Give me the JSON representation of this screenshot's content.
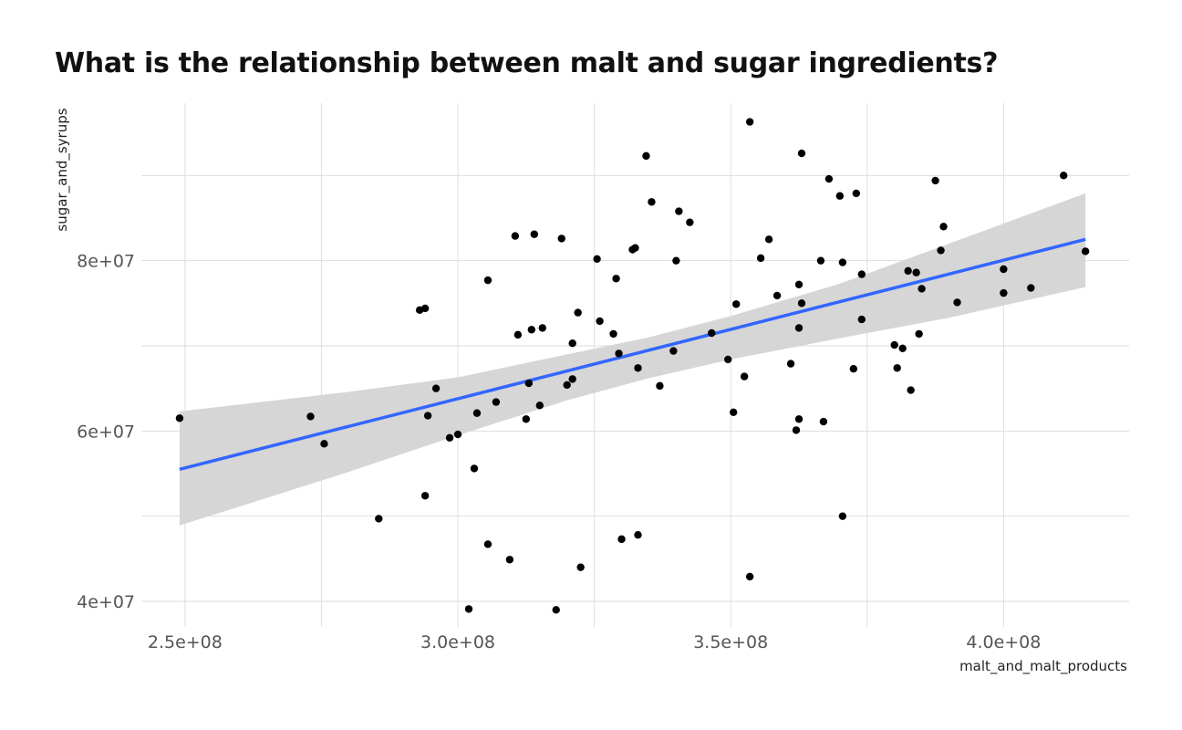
{
  "chart_data": {
    "type": "scatter",
    "title": "What is the relationship between malt and sugar ingredients?",
    "xlabel": "malt_and_malt_products",
    "ylabel": "sugar_and_syrups",
    "xlim": [
      242000000,
      423000000
    ],
    "ylim": [
      37000000,
      98500000
    ],
    "x_ticks": [
      250000000,
      300000000,
      350000000,
      400000000
    ],
    "x_tick_labels": [
      "2.5e+08",
      "3.0e+08",
      "3.5e+08",
      "4.0e+08"
    ],
    "y_ticks": [
      40000000,
      60000000,
      80000000
    ],
    "y_tick_labels": [
      "4e+07",
      "6e+07",
      "8e+07"
    ],
    "grid": true,
    "legend": "none",
    "colors": {
      "points": "#000000",
      "fit_line": "#3366ff",
      "confidence_band": "#d6d6d6",
      "grid": "#dedede"
    },
    "points": [
      [
        249000000,
        61500000
      ],
      [
        273000000,
        61700000
      ],
      [
        275500000,
        58500000
      ],
      [
        285500000,
        49700000
      ],
      [
        293000000,
        74200000
      ],
      [
        294000000,
        74400000
      ],
      [
        294000000,
        52400000
      ],
      [
        294500000,
        61800000
      ],
      [
        296000000,
        65000000
      ],
      [
        298500000,
        59200000
      ],
      [
        300000000,
        59600000
      ],
      [
        302000000,
        39100000
      ],
      [
        303000000,
        55600000
      ],
      [
        303500000,
        62100000
      ],
      [
        305500000,
        46700000
      ],
      [
        305500000,
        77700000
      ],
      [
        307000000,
        63400000
      ],
      [
        309500000,
        44900000
      ],
      [
        310500000,
        82900000
      ],
      [
        311000000,
        71300000
      ],
      [
        312500000,
        61400000
      ],
      [
        313000000,
        65600000
      ],
      [
        313500000,
        71900000
      ],
      [
        314000000,
        83100000
      ],
      [
        315000000,
        63000000
      ],
      [
        315500000,
        72100000
      ],
      [
        318000000,
        39000000
      ],
      [
        319000000,
        82600000
      ],
      [
        320000000,
        65400000
      ],
      [
        321000000,
        66100000
      ],
      [
        321000000,
        70300000
      ],
      [
        322000000,
        73900000
      ],
      [
        322500000,
        44000000
      ],
      [
        325500000,
        80200000
      ],
      [
        326000000,
        72900000
      ],
      [
        328500000,
        71400000
      ],
      [
        329000000,
        77900000
      ],
      [
        329500000,
        69100000
      ],
      [
        330000000,
        47300000
      ],
      [
        332000000,
        81300000
      ],
      [
        332500000,
        81500000
      ],
      [
        333000000,
        67400000
      ],
      [
        333000000,
        47800000
      ],
      [
        334500000,
        92300000
      ],
      [
        335500000,
        86900000
      ],
      [
        337000000,
        65300000
      ],
      [
        339500000,
        69400000
      ],
      [
        340000000,
        80000000
      ],
      [
        340500000,
        85800000
      ],
      [
        342500000,
        84500000
      ],
      [
        346500000,
        71500000
      ],
      [
        349500000,
        68400000
      ],
      [
        350500000,
        62200000
      ],
      [
        351000000,
        74900000
      ],
      [
        352500000,
        66400000
      ],
      [
        353500000,
        96300000
      ],
      [
        353500000,
        42900000
      ],
      [
        355500000,
        80300000
      ],
      [
        357000000,
        82500000
      ],
      [
        358500000,
        75900000
      ],
      [
        361000000,
        67900000
      ],
      [
        362000000,
        60100000
      ],
      [
        362500000,
        72100000
      ],
      [
        362500000,
        61400000
      ],
      [
        362500000,
        77200000
      ],
      [
        363000000,
        75000000
      ],
      [
        363000000,
        92600000
      ],
      [
        366500000,
        80000000
      ],
      [
        367000000,
        61100000
      ],
      [
        368000000,
        89600000
      ],
      [
        370000000,
        87600000
      ],
      [
        370500000,
        79800000
      ],
      [
        370500000,
        50000000
      ],
      [
        372500000,
        67300000
      ],
      [
        373000000,
        87900000
      ],
      [
        374000000,
        73100000
      ],
      [
        374000000,
        78400000
      ],
      [
        380000000,
        70100000
      ],
      [
        380500000,
        67400000
      ],
      [
        381500000,
        69700000
      ],
      [
        382500000,
        78800000
      ],
      [
        383000000,
        64800000
      ],
      [
        384000000,
        78600000
      ],
      [
        384500000,
        71400000
      ],
      [
        385000000,
        76700000
      ],
      [
        387500000,
        89400000
      ],
      [
        388500000,
        81200000
      ],
      [
        389000000,
        84000000
      ],
      [
        391500000,
        75100000
      ],
      [
        400000000,
        76200000
      ],
      [
        400000000,
        79000000
      ],
      [
        405000000,
        76800000
      ],
      [
        411000000,
        90000000
      ],
      [
        415000000,
        81100000
      ]
    ],
    "fit": {
      "x": [
        249000000,
        415000000
      ],
      "y": [
        55500000,
        82500000
      ]
    },
    "band": [
      {
        "x": 249000000,
        "lower": 48900000,
        "upper": 62300000
      },
      {
        "x": 280000000,
        "lower": 55200000,
        "upper": 64600000
      },
      {
        "x": 300000000,
        "lower": 59500000,
        "upper": 66300000
      },
      {
        "x": 320000000,
        "lower": 63600000,
        "upper": 69000000
      },
      {
        "x": 335000000,
        "lower": 66200000,
        "upper": 71000000
      },
      {
        "x": 350000000,
        "lower": 68400000,
        "upper": 73500000
      },
      {
        "x": 370000000,
        "lower": 70900000,
        "upper": 77300000
      },
      {
        "x": 390000000,
        "lower": 73300000,
        "upper": 82000000
      },
      {
        "x": 415000000,
        "lower": 76900000,
        "upper": 87900000
      }
    ]
  }
}
